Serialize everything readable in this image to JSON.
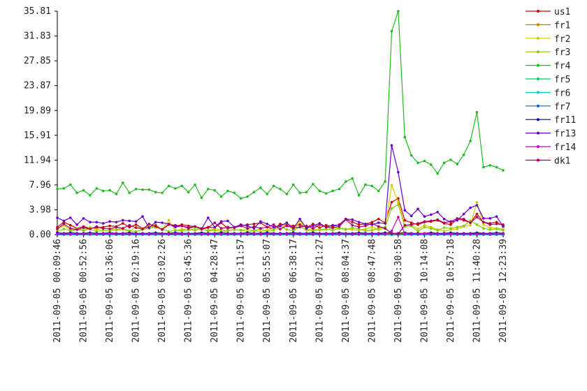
{
  "chart_data": {
    "type": "line",
    "categories": [
      "2011-09-05 00:09:46",
      null,
      null,
      null,
      "2011-09-05 00:52:56",
      null,
      null,
      null,
      "2011-09-05 01:36:06",
      null,
      null,
      null,
      "2011-09-05 02:19:16",
      null,
      null,
      null,
      "2011-09-05 03:02:26",
      null,
      null,
      null,
      "2011-09-05 03:45:36",
      null,
      null,
      null,
      "2011-09-05 04:28:47",
      null,
      null,
      null,
      "2011-09-05 05:11:57",
      null,
      null,
      null,
      "2011-09-05 05:55:07",
      null,
      null,
      null,
      "2011-09-05 06:38:17",
      null,
      null,
      null,
      "2011-09-05 07:21:27",
      null,
      null,
      null,
      "2011-09-05 08:04:37",
      null,
      null,
      null,
      "2011-09-05 08:47:48",
      null,
      null,
      null,
      "2011-09-05 09:30:58",
      null,
      null,
      null,
      "2011-09-05 10:14:08",
      null,
      null,
      null,
      "2011-09-05 10:57:18",
      null,
      null,
      null,
      "2011-09-05 11:40:28",
      null,
      null,
      null,
      "2011-09-05 12:23:39"
    ],
    "ylim": [
      0,
      35.81
    ],
    "yticks": [
      {
        "value": 0,
        "label": "0.00"
      },
      3.98,
      7.96,
      11.94,
      15.91,
      19.89,
      23.87,
      27.85,
      31.83,
      35.81
    ],
    "grid": false,
    "legend": "right",
    "series": [
      {
        "name": "us1",
        "color": "#cc0000",
        "values": [
          1.2,
          2.0,
          1.5,
          1.0,
          1.3,
          1.0,
          1.1,
          1.2,
          1.4,
          1.3,
          1.8,
          1.2,
          1.6,
          1.0,
          1.2,
          1.5,
          0.8,
          1.7,
          1.3,
          1.6,
          1.4,
          1.3,
          1.0,
          1.2,
          1.1,
          1.9,
          1.0,
          1.2,
          1.4,
          1.6,
          1.7,
          1.9,
          1.2,
          0.9,
          1.7,
          1.5,
          1.4,
          1.6,
          1.1,
          1.7,
          1.1,
          1.5,
          1.3,
          1.6,
          2.5,
          2.0,
          1.6,
          1.7,
          2.0,
          2.5,
          1.9,
          5.2,
          5.8,
          2.3,
          1.9,
          1.6,
          2.0,
          2.1,
          2.3,
          1.8,
          1.6,
          2.5,
          2.3,
          1.9,
          3.3,
          2.0,
          1.8,
          2.0,
          1.4
        ]
      },
      {
        "name": "fr1",
        "color": "#cc7a00",
        "values": [
          0.1,
          0.1,
          0.1,
          0.1,
          0.1,
          0.1,
          0.1,
          0.1,
          0.1,
          0.1,
          0.1,
          0.1,
          0.1,
          0.1,
          0.1,
          0.1,
          0.1,
          0.1,
          0.1,
          0.1,
          0.1,
          0.1,
          0.1,
          0.1,
          0.1,
          0.1,
          0.1,
          0.1,
          0.1,
          0.1,
          0.1,
          0.1,
          0.1,
          0.1,
          0.1,
          0.1,
          0.1,
          0.1,
          0.1,
          0.1,
          0.1,
          0.1,
          0.1,
          0.1,
          0.1,
          0.1,
          0.1,
          0.1,
          0.1,
          0.1,
          0.1,
          0.2,
          0.2,
          0.1,
          0.1,
          0.1,
          0.1,
          0.1,
          0.1,
          0.1,
          0.1,
          0.1,
          0.1,
          0.1,
          0.2,
          0.1,
          0.1,
          0.1,
          0.1
        ]
      },
      {
        "name": "fr2",
        "color": "#cccc00",
        "values": [
          0.8,
          1.5,
          0.7,
          1.0,
          0.6,
          1.2,
          0.8,
          1.0,
          0.9,
          0.7,
          0.8,
          0.5,
          1.2,
          1.0,
          1.4,
          1.1,
          0.9,
          2.3,
          0.6,
          0.9,
          0.7,
          1.0,
          0.8,
          0.7,
          0.9,
          0.8,
          0.6,
          0.8,
          0.7,
          0.9,
          0.6,
          0.5,
          0.7,
          1.0,
          0.8,
          1.9,
          0.6,
          2.2,
          0.8,
          0.9,
          0.7,
          0.8,
          1.0,
          1.1,
          0.9,
          0.8,
          0.7,
          0.9,
          1.2,
          0.8,
          1.0,
          7.9,
          5.2,
          1.4,
          1.6,
          0.9,
          1.5,
          1.2,
          0.8,
          0.6,
          0.8,
          0.9,
          1.3,
          1.5,
          5.2,
          1.6,
          1.1,
          1.0,
          0.9
        ]
      },
      {
        "name": "fr3",
        "color": "#88cc00",
        "values": [
          0.5,
          0.9,
          0.6,
          0.8,
          0.7,
          0.9,
          0.5,
          0.7,
          0.6,
          0.8,
          1.0,
          0.6,
          0.5,
          0.8,
          1.0,
          1.3,
          0.9,
          0.5,
          0.7,
          0.6,
          0.8,
          0.7,
          0.9,
          0.6,
          0.7,
          0.5,
          0.6,
          0.8,
          0.7,
          0.5,
          0.6,
          0.9,
          0.5,
          0.7,
          1.4,
          0.8,
          0.6,
          1.3,
          0.7,
          0.6,
          0.8,
          0.9,
          0.7,
          1.0,
          0.8,
          1.1,
          0.9,
          0.6,
          0.7,
          1.0,
          1.2,
          4.2,
          4.8,
          1.3,
          1.4,
          0.5,
          1.2,
          1.0,
          0.7,
          1.1,
          1.0,
          1.2,
          1.4,
          2.2,
          1.6,
          1.0,
          0.8,
          0.9,
          0.7
        ]
      },
      {
        "name": "fr4",
        "color": "#22bb22",
        "values": [
          7.3,
          7.4,
          8.0,
          6.7,
          7.1,
          6.3,
          7.4,
          7.0,
          7.1,
          6.5,
          8.3,
          6.7,
          7.3,
          7.2,
          7.2,
          6.8,
          6.7,
          7.8,
          7.4,
          7.8,
          6.8,
          8.0,
          5.9,
          7.3,
          7.1,
          6.1,
          7.0,
          6.7,
          5.8,
          6.1,
          6.8,
          7.5,
          6.5,
          7.8,
          7.3,
          6.5,
          8.0,
          6.7,
          6.8,
          8.1,
          7.0,
          6.6,
          7.0,
          7.3,
          8.5,
          9.0,
          6.3,
          8.0,
          7.8,
          7.0,
          8.5,
          32.6,
          35.81,
          15.6,
          12.7,
          11.5,
          11.8,
          11.2,
          9.8,
          11.5,
          12.0,
          11.3,
          12.8,
          15.0,
          19.6,
          10.8,
          11.1,
          10.8,
          10.3
        ]
      },
      {
        "name": "fr5",
        "color": "#00cc66",
        "values": [
          0,
          0,
          0,
          0,
          0,
          0,
          0,
          0,
          0,
          0,
          0,
          0,
          0,
          0,
          0,
          0,
          0,
          0,
          0,
          0,
          0,
          0,
          0,
          0,
          0,
          0,
          0,
          0,
          0,
          0,
          0,
          0,
          0,
          0,
          0,
          0,
          0,
          0,
          0,
          0,
          0,
          0,
          0,
          0,
          0,
          0,
          0,
          0,
          0,
          0,
          0,
          0,
          0,
          0,
          0,
          0,
          0,
          0,
          0,
          0,
          0,
          0,
          0,
          0,
          0,
          0,
          0,
          0,
          0
        ]
      },
      {
        "name": "fr6",
        "color": "#00cccc",
        "values": [
          0,
          0,
          0,
          0,
          0,
          0,
          0,
          0,
          0,
          0,
          0,
          0,
          0,
          0,
          0,
          0,
          0,
          0,
          0,
          0,
          0,
          0,
          0,
          0,
          0,
          0,
          0,
          0,
          0,
          0,
          0,
          0,
          0,
          0,
          0,
          0,
          0,
          0,
          0,
          0,
          0,
          0,
          0,
          0,
          0,
          0,
          0,
          0,
          0,
          0,
          0,
          0,
          0,
          0,
          0,
          0,
          0,
          0,
          0,
          0,
          0,
          0,
          0,
          0,
          0,
          0,
          0,
          0,
          0
        ]
      },
      {
        "name": "fr7",
        "color": "#0066cc",
        "values": [
          0,
          0,
          0,
          0,
          0,
          0,
          0,
          0,
          0,
          0,
          0,
          0,
          0,
          0,
          0,
          0,
          0,
          0,
          0,
          0,
          0,
          0,
          0,
          0,
          0,
          0,
          0,
          0,
          0,
          0,
          0,
          0,
          0,
          0,
          0,
          0,
          0,
          0,
          0,
          0,
          0,
          0,
          0,
          0,
          0,
          0,
          0,
          0,
          0,
          0,
          0,
          0,
          0,
          0,
          0,
          0,
          0,
          0,
          0,
          0,
          0,
          0,
          0,
          0,
          0,
          0,
          0,
          0,
          0
        ]
      },
      {
        "name": "fr11",
        "color": "#0000aa",
        "values": [
          0.3,
          0.2,
          0.3,
          0.2,
          0.2,
          0.3,
          0.2,
          0.2,
          0.3,
          0.2,
          0.2,
          0.3,
          0.2,
          0.2,
          0.2,
          0.3,
          0.2,
          0.2,
          0.3,
          0.2,
          0.2,
          0.2,
          0.3,
          0.2,
          0.2,
          0.3,
          0.2,
          0.2,
          0.2,
          0.3,
          0.2,
          0.2,
          0.3,
          0.2,
          0.2,
          0.2,
          0.3,
          0.2,
          0.2,
          0.3,
          0.2,
          0.2,
          0.2,
          0.3,
          0.2,
          0.2,
          0.3,
          0.2,
          0.2,
          0.2,
          0.3,
          0.2,
          0.2,
          0.3,
          0.2,
          0.2,
          0.2,
          0.3,
          0.2,
          0.2,
          0.3,
          0.2,
          0.2,
          0.2,
          0.3,
          0.2,
          0.2,
          0.3,
          0.2
        ]
      },
      {
        "name": "fr13",
        "color": "#6a00cc",
        "values": [
          2.7,
          2.2,
          2.7,
          1.6,
          2.6,
          2.0,
          2.0,
          1.8,
          2.1,
          2.0,
          2.3,
          2.2,
          2.1,
          2.9,
          1.1,
          2.0,
          1.9,
          1.7,
          1.2,
          1.4,
          1.1,
          1.3,
          0.9,
          2.7,
          1.2,
          2.1,
          2.2,
          1.2,
          1.6,
          1.4,
          1.0,
          2.1,
          1.7,
          1.2,
          1.4,
          1.9,
          1.0,
          2.5,
          1.0,
          1.4,
          1.8,
          1.2,
          1.5,
          1.5,
          2.5,
          2.4,
          2.0,
          1.7,
          1.6,
          1.9,
          1.8,
          14.3,
          10.0,
          3.9,
          3.0,
          4.1,
          2.9,
          3.2,
          3.6,
          2.5,
          2.0,
          2.3,
          3.3,
          4.3,
          4.7,
          2.6,
          2.6,
          2.9,
          1.3
        ]
      },
      {
        "name": "fr14",
        "color": "#cc00cc",
        "values": [
          0.1,
          0.1,
          0.1,
          0.1,
          0.1,
          0.1,
          0.1,
          0.1,
          0.2,
          0.1,
          0.1,
          0.1,
          0.1,
          0.1,
          0.1,
          0.1,
          0.1,
          0.1,
          0.1,
          0.1,
          0.1,
          0.1,
          0.1,
          0.1,
          0.1,
          0.1,
          0.1,
          0.1,
          0.1,
          0.1,
          0.1,
          0.1,
          0.1,
          0.1,
          0.1,
          0.1,
          0.1,
          0.1,
          0.1,
          0.1,
          0.1,
          0.1,
          0.1,
          0.1,
          0.1,
          0.1,
          0.1,
          0.1,
          0.1,
          0.1,
          0.1,
          0.6,
          2.8,
          0.1,
          0.1,
          0.1,
          0.2,
          0.1,
          0.1,
          0.1,
          0.1,
          0.1,
          0.1,
          0.1,
          0.1,
          0.1,
          0.1,
          0.1,
          0.1
        ]
      },
      {
        "name": "dk1",
        "color": "#aa0066",
        "values": [
          0.9,
          1.7,
          1.0,
          0.8,
          1.1,
          0.9,
          1.3,
          1.0,
          0.9,
          1.2,
          1.0,
          1.5,
          1.1,
          0.9,
          1.7,
          1.3,
          0.8,
          1.6,
          1.5,
          1.4,
          1.0,
          1.3,
          0.9,
          1.1,
          1.9,
          1.0,
          1.2,
          1.1,
          1.4,
          1.0,
          1.3,
          1.0,
          1.2,
          1.6,
          0.9,
          1.4,
          1.1,
          1.2,
          1.4,
          1.0,
          1.6,
          1.2,
          1.1,
          1.3,
          2.4,
          1.5,
          1.2,
          1.4,
          1.8,
          1.3,
          1.0,
          0.2,
          0.1,
          1.5,
          1.6,
          1.8,
          2.1,
          2.2,
          2.4,
          1.9,
          2.1,
          2.6,
          2.5,
          1.9,
          2.8,
          2.0,
          1.6,
          1.7,
          1.6
        ]
      }
    ]
  }
}
